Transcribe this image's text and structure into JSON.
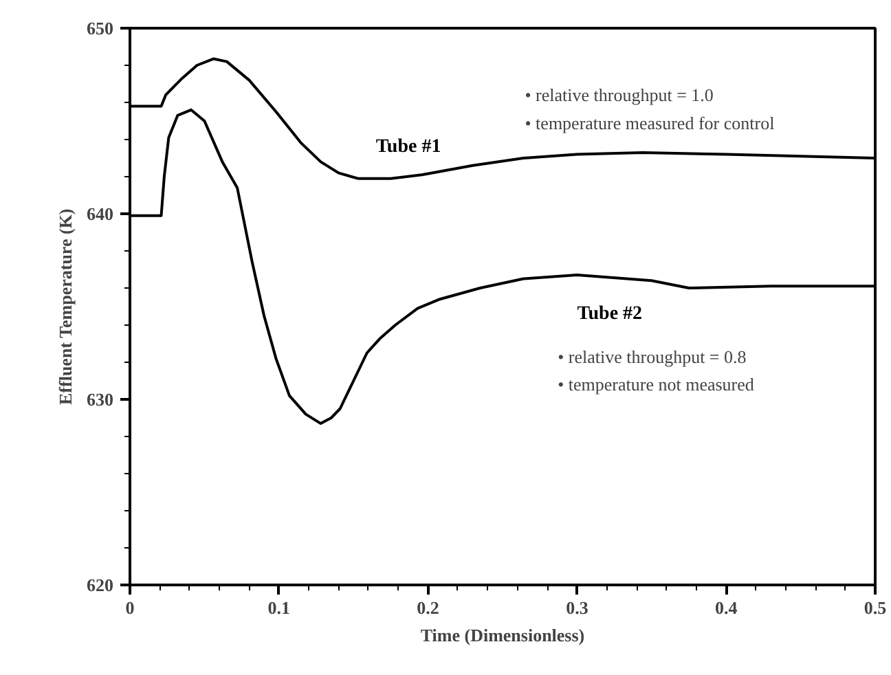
{
  "chart_data": {
    "type": "line",
    "xlabel": "Time (Dimensionless)",
    "ylabel": "Effluent Temperature (K)",
    "xlim": [
      0,
      0.5
    ],
    "ylim": [
      620,
      650
    ],
    "xticks": [
      0,
      {
        "value": 0.02,
        "label": null
      },
      {
        "value": 0.04,
        "label": null
      },
      {
        "value": 0.06,
        "label": null
      },
      {
        "value": 0.08,
        "label": null
      },
      0.1,
      {
        "value": 0.12,
        "label": null
      },
      {
        "value": 0.14,
        "label": null
      },
      {
        "value": 0.16,
        "label": null
      },
      {
        "value": 0.18,
        "label": null
      },
      0.2,
      {
        "value": 0.22,
        "label": null
      },
      {
        "value": 0.24,
        "label": null
      },
      {
        "value": 0.26,
        "label": null
      },
      {
        "value": 0.28,
        "label": null
      },
      0.3,
      {
        "value": 0.32,
        "label": null
      },
      {
        "value": 0.34,
        "label": null
      },
      {
        "value": 0.36,
        "label": null
      },
      {
        "value": 0.38,
        "label": null
      },
      0.4,
      {
        "value": 0.42,
        "label": null
      },
      {
        "value": 0.44,
        "label": null
      },
      {
        "value": 0.46,
        "label": null
      },
      {
        "value": 0.48,
        "label": null
      },
      0.5
    ],
    "yticks": [
      620,
      {
        "value": 622,
        "label": null
      },
      {
        "value": 624,
        "label": null
      },
      {
        "value": 626,
        "label": null
      },
      {
        "value": 628,
        "label": null
      },
      630,
      {
        "value": 632,
        "label": null
      },
      {
        "value": 634,
        "label": null
      },
      {
        "value": 636,
        "label": null
      },
      {
        "value": 638,
        "label": null
      },
      640,
      {
        "value": 642,
        "label": null
      },
      {
        "value": 644,
        "label": null
      },
      {
        "value": 646,
        "label": null
      },
      {
        "value": 648,
        "label": null
      },
      650
    ],
    "grid": false,
    "marker": "none",
    "line_style": "solid",
    "series": [
      {
        "name": "Tube #1",
        "color": "#000000",
        "x": [
          0,
          0.021,
          0.024,
          0.035,
          0.045,
          0.056,
          0.065,
          0.08,
          0.098,
          0.115,
          0.128,
          0.14,
          0.153,
          0.175,
          0.196,
          0.23,
          0.264,
          0.3,
          0.344,
          0.4,
          0.45,
          0.5
        ],
        "values": [
          645.8,
          645.8,
          646.4,
          647.3,
          648.0,
          648.35,
          648.2,
          647.2,
          645.5,
          643.8,
          642.8,
          642.2,
          641.9,
          641.9,
          642.1,
          642.6,
          643.0,
          643.2,
          643.3,
          643.2,
          643.1,
          643.0
        ]
      },
      {
        "name": "Tube #2",
        "color": "#000000",
        "x": [
          0,
          0.021,
          0.023,
          0.026,
          0.032,
          0.041,
          0.05,
          0.062,
          0.072,
          0.082,
          0.09,
          0.098,
          0.107,
          0.118,
          0.128,
          0.135,
          0.141,
          0.15,
          0.159,
          0.168,
          0.178,
          0.193,
          0.208,
          0.235,
          0.264,
          0.3,
          0.35,
          0.375,
          0.43,
          0.5
        ],
        "values": [
          639.9,
          639.9,
          642.0,
          644.1,
          645.3,
          645.6,
          645.0,
          642.8,
          641.4,
          637.4,
          634.5,
          632.2,
          630.2,
          629.2,
          628.7,
          629.0,
          629.5,
          631.0,
          632.5,
          633.3,
          634.0,
          634.9,
          635.4,
          636.0,
          636.5,
          636.7,
          636.4,
          636.0,
          636.1,
          636.1
        ]
      }
    ],
    "annotations": [
      "• relative throughput = 1.0",
      "• temperature  measured for control",
      "• relative throughput = 0.8",
      "• temperature not measured"
    ]
  }
}
